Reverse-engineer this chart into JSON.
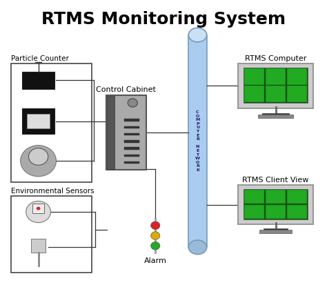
{
  "title": "RTMS Monitoring System",
  "title_fontsize": 18,
  "title_fontweight": "bold",
  "bg_color": "#ffffff",
  "labels": {
    "particle_counter": "Particle Counter",
    "env_sensors": "Environmental Sensors",
    "control_cabinet": "Control Cabinet",
    "rtms_computer": "RTMS Computer",
    "rtms_client": "RTMS Client View",
    "alarm": "Alarm"
  },
  "colors": {
    "box_edge": "#444444",
    "cylinder_fill": "#aaccee",
    "cylinder_edge": "#7799bb",
    "line": "#333333",
    "alarm_red": "#dd2222",
    "alarm_yellow": "#ddaa00",
    "alarm_green": "#22aa22"
  }
}
